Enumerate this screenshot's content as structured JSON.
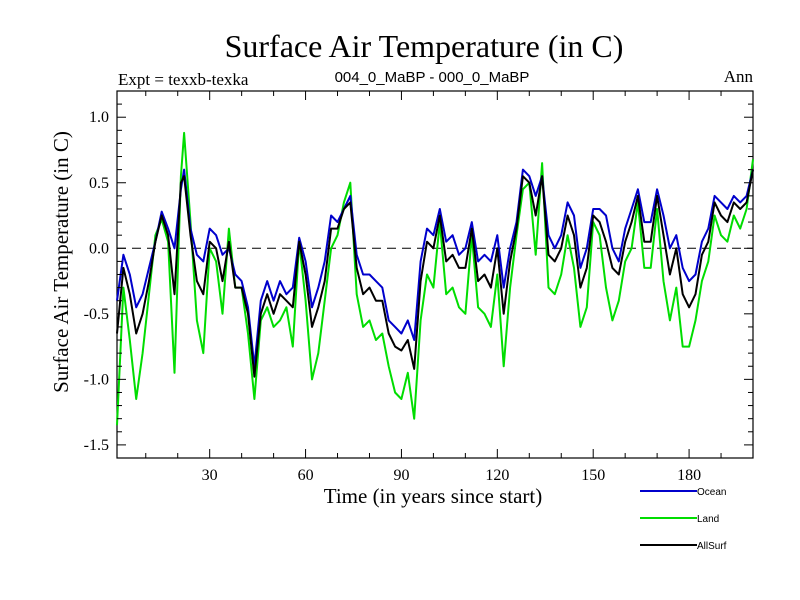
{
  "chart_data": {
    "type": "line",
    "title": "Surface Air Temperature (in C)",
    "left_label": "Expt = texxb-texka",
    "center_label": "004_0_MaBP - 000_0_MaBP",
    "right_label": "Ann",
    "xlabel": "Time (in years since start)",
    "ylabel": "Surface Air Temperature (in C)",
    "xlim": [
      1,
      200
    ],
    "ylim": [
      -1.6,
      1.2
    ],
    "xticks": [
      30,
      60,
      90,
      120,
      150,
      180
    ],
    "xtick_labels": [
      "30",
      "60",
      "90",
      "120",
      "150",
      "180"
    ],
    "yticks": [
      1.0,
      0.5,
      0.0,
      -0.5,
      -1.0,
      -1.5
    ],
    "ytick_labels": [
      "1.0",
      "0.5",
      "0.0",
      "-0.5",
      "-1.0",
      "-1.5"
    ],
    "reference_line": 0.0,
    "anchor_years": [
      1,
      3,
      5,
      7,
      9,
      11,
      13,
      15,
      17,
      19,
      21,
      22,
      24,
      26,
      28,
      30,
      32,
      34,
      36,
      38,
      40,
      42,
      44,
      46,
      48,
      50,
      52,
      54,
      56,
      58,
      60,
      62,
      64,
      66,
      68,
      70,
      72,
      74,
      76,
      78,
      80,
      82,
      84,
      86,
      88,
      90,
      92,
      94,
      96,
      98,
      100,
      102,
      104,
      106,
      108,
      110,
      112,
      114,
      116,
      118,
      120,
      122,
      124,
      126,
      128,
      130,
      132,
      134,
      136,
      138,
      140,
      142,
      144,
      146,
      148,
      150,
      152,
      154,
      156,
      158,
      160,
      162,
      164,
      166,
      168,
      170,
      172,
      174,
      176,
      178,
      180,
      182,
      184,
      186,
      188,
      190,
      192,
      194,
      196,
      198,
      200
    ],
    "series": [
      {
        "name": "Ocean",
        "color": "#0000cc",
        "values": [
          -0.4,
          -0.05,
          -0.2,
          -0.45,
          -0.35,
          -0.15,
          0.05,
          0.28,
          0.15,
          0.0,
          0.45,
          0.6,
          0.15,
          -0.05,
          -0.1,
          0.15,
          0.1,
          -0.05,
          0.0,
          -0.2,
          -0.25,
          -0.45,
          -0.9,
          -0.4,
          -0.25,
          -0.4,
          -0.25,
          -0.35,
          -0.3,
          0.08,
          -0.1,
          -0.45,
          -0.3,
          -0.1,
          0.25,
          0.2,
          0.3,
          0.4,
          -0.05,
          -0.2,
          -0.2,
          -0.25,
          -0.3,
          -0.55,
          -0.6,
          -0.65,
          -0.55,
          -0.7,
          -0.1,
          0.15,
          0.1,
          0.3,
          0.05,
          0.1,
          -0.05,
          0.0,
          0.2,
          -0.1,
          -0.05,
          -0.1,
          0.1,
          -0.3,
          0.0,
          0.2,
          0.6,
          0.55,
          0.4,
          0.55,
          0.1,
          0.0,
          0.1,
          0.35,
          0.25,
          -0.15,
          0.0,
          0.3,
          0.3,
          0.25,
          0.0,
          -0.1,
          0.15,
          0.3,
          0.45,
          0.2,
          0.2,
          0.45,
          0.25,
          0.0,
          0.1,
          -0.15,
          -0.25,
          -0.2,
          0.05,
          0.15,
          0.4,
          0.35,
          0.3,
          0.4,
          0.35,
          0.4,
          0.6
        ]
      },
      {
        "name": "Land",
        "color": "#00dd00",
        "values": [
          -1.35,
          -0.3,
          -0.7,
          -1.15,
          -0.8,
          -0.35,
          0.1,
          0.22,
          0.05,
          -0.95,
          0.55,
          0.88,
          0.2,
          -0.55,
          -0.8,
          0.0,
          -0.1,
          -0.5,
          0.15,
          -0.3,
          -0.3,
          -0.65,
          -1.15,
          -0.55,
          -0.45,
          -0.6,
          -0.55,
          -0.45,
          -0.75,
          0.05,
          -0.4,
          -1.0,
          -0.8,
          -0.4,
          0.0,
          0.1,
          0.35,
          0.5,
          -0.35,
          -0.6,
          -0.55,
          -0.7,
          -0.65,
          -0.9,
          -1.1,
          -1.15,
          -0.95,
          -1.3,
          -0.55,
          -0.2,
          -0.3,
          0.2,
          -0.35,
          -0.3,
          -0.45,
          -0.5,
          0.1,
          -0.45,
          -0.5,
          -0.6,
          -0.2,
          -0.9,
          -0.3,
          0.1,
          0.45,
          0.5,
          -0.05,
          0.65,
          -0.3,
          -0.35,
          -0.2,
          0.1,
          -0.15,
          -0.6,
          -0.45,
          0.2,
          0.1,
          -0.3,
          -0.55,
          -0.4,
          -0.1,
          0.0,
          0.35,
          -0.15,
          -0.15,
          0.3,
          -0.25,
          -0.55,
          -0.3,
          -0.75,
          -0.75,
          -0.55,
          -0.25,
          -0.1,
          0.25,
          0.1,
          0.05,
          0.25,
          0.15,
          0.3,
          0.68
        ]
      },
      {
        "name": "AllSurf",
        "color": "#000000",
        "values": [
          -0.65,
          -0.15,
          -0.35,
          -0.65,
          -0.5,
          -0.25,
          0.05,
          0.25,
          0.1,
          -0.35,
          0.5,
          0.55,
          0.1,
          -0.25,
          -0.35,
          0.05,
          0.0,
          -0.25,
          0.05,
          -0.3,
          -0.3,
          -0.5,
          -0.98,
          -0.5,
          -0.35,
          -0.5,
          -0.35,
          -0.4,
          -0.45,
          0.05,
          -0.2,
          -0.6,
          -0.45,
          -0.25,
          0.15,
          0.15,
          0.3,
          0.35,
          -0.15,
          -0.35,
          -0.3,
          -0.4,
          -0.4,
          -0.65,
          -0.75,
          -0.78,
          -0.7,
          -0.92,
          -0.25,
          0.05,
          0.0,
          0.25,
          -0.1,
          -0.05,
          -0.15,
          -0.15,
          0.15,
          -0.25,
          -0.2,
          -0.3,
          0.0,
          -0.5,
          -0.1,
          0.15,
          0.55,
          0.5,
          0.25,
          0.55,
          -0.05,
          -0.1,
          0.0,
          0.25,
          0.1,
          -0.3,
          -0.15,
          0.25,
          0.2,
          0.05,
          -0.15,
          -0.2,
          0.05,
          0.2,
          0.4,
          0.05,
          0.05,
          0.4,
          0.1,
          -0.2,
          0.0,
          -0.35,
          -0.45,
          -0.35,
          -0.05,
          0.05,
          0.35,
          0.25,
          0.2,
          0.35,
          0.3,
          0.35,
          0.6
        ]
      }
    ]
  }
}
